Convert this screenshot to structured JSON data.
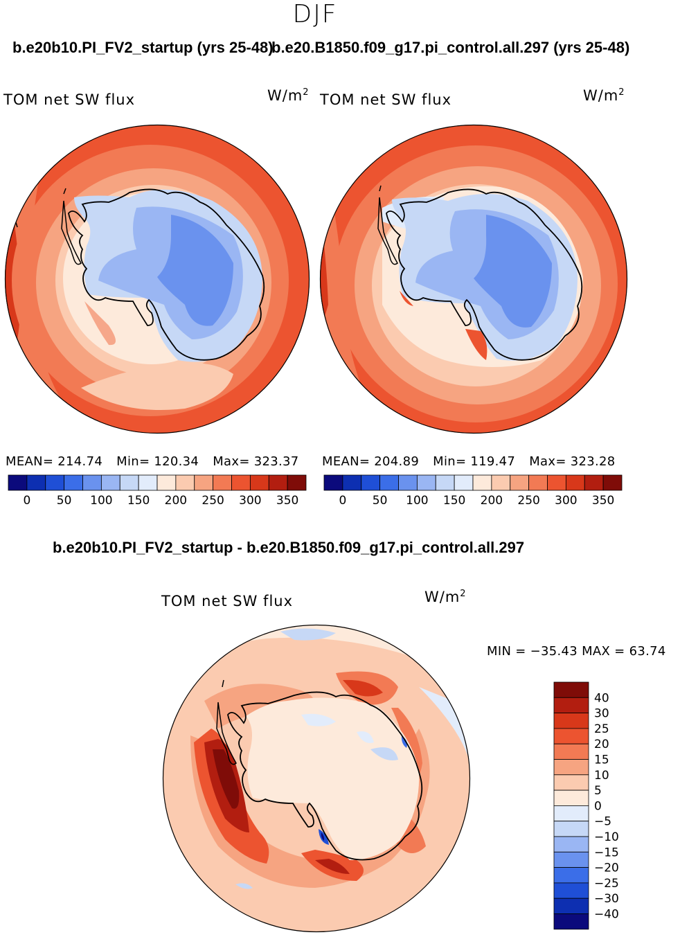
{
  "figure": {
    "season": "DJF",
    "units_base": "W/m",
    "units_exp": "2"
  },
  "panels": [
    {
      "run": "b.e20b10.PI_FV2_startup (yrs 25-48)",
      "variable": "TOM net SW flux",
      "stats": {
        "mean_label": "MEAN=",
        "mean": "214.74",
        "min_label": "Min=",
        "min": "120.34",
        "max_label": "Max=",
        "max": "323.37"
      }
    },
    {
      "run": "b.e20.B1850.f09_g17.pi_control.all.297 (yrs 25-48)",
      "variable": "TOM net SW flux",
      "stats": {
        "mean_label": "MEAN=",
        "mean": "204.89",
        "min_label": "Min=",
        "min": "119.47",
        "max_label": "Max=",
        "max": "323.28"
      }
    }
  ],
  "difference": {
    "title": "b.e20b10.PI_FV2_startup - b.e20.B1850.f09_g17.pi_control.all.297",
    "variable": "TOM net SW flux",
    "minmax": "MIN = −35.43  MAX =   63.74"
  },
  "chart_data": [
    {
      "type": "heatmap",
      "projection": "south-polar-stereographic",
      "title": "b.e20b10.PI_FV2_startup (yrs 25-48)",
      "variable": "TOM net SW flux",
      "units": "W/m2",
      "mean": 214.74,
      "min": 120.34,
      "max": 323.37,
      "colorbar_ticks": [
        0,
        50,
        100,
        150,
        200,
        250,
        300,
        350
      ],
      "levels": [
        -25,
        0,
        25,
        50,
        75,
        100,
        125,
        150,
        175,
        200,
        225,
        250,
        275,
        300,
        325,
        350,
        375
      ]
    },
    {
      "type": "heatmap",
      "projection": "south-polar-stereographic",
      "title": "b.e20.B1850.f09_g17.pi_control.all.297 (yrs 25-48)",
      "variable": "TOM net SW flux",
      "units": "W/m2",
      "mean": 204.89,
      "min": 119.47,
      "max": 323.28,
      "colorbar_ticks": [
        0,
        50,
        100,
        150,
        200,
        250,
        300,
        350
      ],
      "levels": [
        -25,
        0,
        25,
        50,
        75,
        100,
        125,
        150,
        175,
        200,
        225,
        250,
        275,
        300,
        325,
        350,
        375
      ]
    },
    {
      "type": "heatmap",
      "projection": "south-polar-stereographic",
      "title": "b.e20b10.PI_FV2_startup - b.e20.B1850.f09_g17.pi_control.all.297",
      "variable": "TOM net SW flux",
      "units": "W/m2",
      "min": -35.43,
      "max": 63.74,
      "colorbar_ticks": [
        40,
        30,
        25,
        20,
        15,
        10,
        5,
        0,
        -5,
        -10,
        -15,
        -20,
        -25,
        -30,
        -40
      ]
    }
  ],
  "colors": {
    "abs_scale": [
      "#0b0a7c",
      "#0d2fb1",
      "#1f4fd6",
      "#3b6ee8",
      "#6a92ee",
      "#9ab6f3",
      "#c6d8f6",
      "#e2ecfb",
      "#fdeadb",
      "#fbcbb0",
      "#f6a481",
      "#f27a54",
      "#ec5430",
      "#d8381a",
      "#b21e10",
      "#7f0c08"
    ],
    "diff_scale": [
      "#7f0c08",
      "#b21e10",
      "#d8381a",
      "#ec5430",
      "#f27a54",
      "#f6a481",
      "#fbcbb0",
      "#fdeadb",
      "#e2ecfb",
      "#c6d8f6",
      "#9ab6f3",
      "#6a92ee",
      "#3b6ee8",
      "#1f4fd6",
      "#0d2fb1",
      "#0b0a7c"
    ]
  }
}
